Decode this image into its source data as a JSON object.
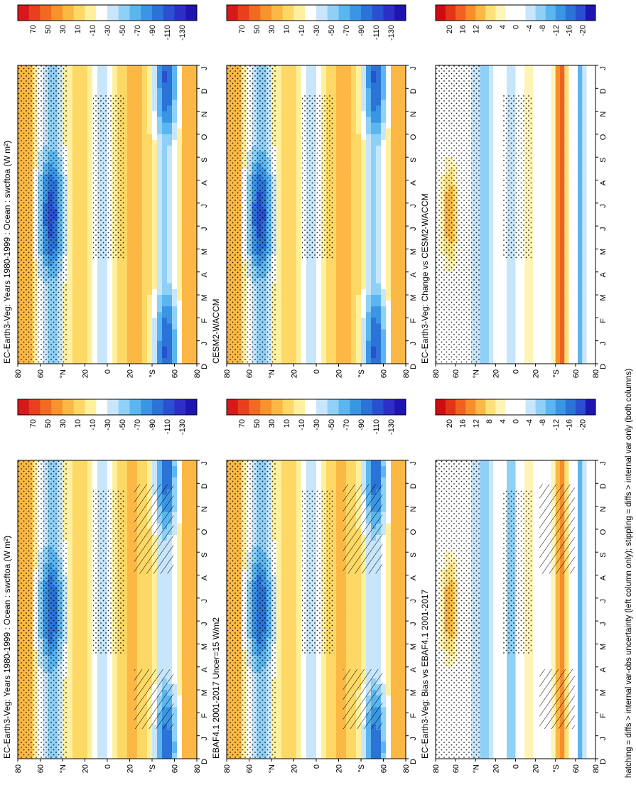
{
  "footer_note": "hatching = diffs > internal var-obs uncertainty (left column only); stippling = diffs > internal var only (both columns)",
  "month_labels": [
    "D",
    "J",
    "F",
    "M",
    "A",
    "M",
    "J",
    "J",
    "A",
    "S",
    "O",
    "N",
    "D",
    "J"
  ],
  "lat_labels": [
    "80",
    "60",
    "°N",
    "20",
    "0",
    "20",
    "°S",
    "60",
    "80"
  ],
  "colorscales": {
    "absolute": {
      "labels": [
        "70",
        "50",
        "30",
        "10",
        "-10",
        "-30",
        "-50",
        "-70",
        "-90",
        "-110",
        "-130"
      ],
      "colors": [
        "#d7191c",
        "#e8401c",
        "#f06a22",
        "#f7922d",
        "#fbb845",
        "#fdd865",
        "#fff09e",
        "#ffffff",
        "#c8e6fb",
        "#8fd0f6",
        "#5bb6ef",
        "#3a96e3",
        "#2b73d6",
        "#2a4fd0",
        "#2d2ec8",
        "#1e14b0"
      ]
    },
    "difference": {
      "labels": [
        "20",
        "16",
        "12",
        "8",
        "4",
        "0",
        "-4",
        "-8",
        "-12",
        "-16",
        "-20"
      ],
      "colors": [
        "#cc0c10",
        "#e23416",
        "#f0601e",
        "#f78e2a",
        "#fbb845",
        "#fde07a",
        "#fff4b8",
        "#ffffff",
        "#ffffff",
        "#c8e6fb",
        "#8fd0f6",
        "#5bb6ef",
        "#3a96e3",
        "#2b73d6",
        "#2a4fd0",
        "#1e14b0"
      ]
    }
  },
  "panels": [
    {
      "id": "p-top-left",
      "title": "EC-Earth3-Veg: Years 1980-1999 : Ocean : swcftoa (W m²)",
      "scale": "absolute",
      "hatching": true,
      "stipple": true
    },
    {
      "id": "p-top-right",
      "title": "EC-Earth3-Veg: Years 1980-1999 : Ocean : swcftoa (W m²)",
      "scale": "absolute",
      "hatching": false,
      "stipple": true
    },
    {
      "id": "p-mid-left",
      "title": "EBAF4.1 2001-2017 Uncer=15 W/m2",
      "scale": "absolute",
      "hatching": true,
      "stipple": true
    },
    {
      "id": "p-mid-right",
      "title": "CESM2-WACCM",
      "scale": "absolute",
      "hatching": false,
      "stipple": true
    },
    {
      "id": "p-bot-left",
      "title": "EC-Earth3-Veg: Bias vs EBAF4.1 2001-2017",
      "scale": "difference",
      "hatching": true,
      "stipple": true
    },
    {
      "id": "p-bot-right",
      "title": "EC-Earth3-Veg: Change vs CESM2-WACCM",
      "scale": "difference",
      "hatching": false,
      "stipple": true
    }
  ],
  "chart_data": [
    {
      "type": "heatmap",
      "title": "EC-Earth3-Veg: Years 1980-1999 : Ocean : swcftoa (W m²)",
      "xlabel": "",
      "ylabel": "",
      "x": [
        "D",
        "J",
        "F",
        "M",
        "A",
        "M",
        "J",
        "J",
        "A",
        "S",
        "O",
        "N",
        "D",
        "J"
      ],
      "y": [
        "80N",
        "60N",
        "40N",
        "20N",
        "0",
        "20S",
        "40S",
        "60S",
        "80S"
      ],
      "zrange": [
        -130,
        70
      ],
      "units": "W m²"
    },
    {
      "type": "heatmap",
      "title": "EC-Earth3-Veg: Years 1980-1999 : Ocean : swcftoa (W m²)",
      "x": [
        "D",
        "J",
        "F",
        "M",
        "A",
        "M",
        "J",
        "J",
        "A",
        "S",
        "O",
        "N",
        "D",
        "J"
      ],
      "y": [
        "80N",
        "60N",
        "40N",
        "20N",
        "0",
        "20S",
        "40S",
        "60S",
        "80S"
      ],
      "zrange": [
        -130,
        70
      ],
      "units": "W m²"
    },
    {
      "type": "heatmap",
      "title": "EBAF4.1 2001-2017 Uncer=15 W/m2",
      "x": [
        "D",
        "J",
        "F",
        "M",
        "A",
        "M",
        "J",
        "J",
        "A",
        "S",
        "O",
        "N",
        "D",
        "J"
      ],
      "y": [
        "80N",
        "60N",
        "40N",
        "20N",
        "0",
        "20S",
        "40S",
        "60S",
        "80S"
      ],
      "zrange": [
        -130,
        70
      ]
    },
    {
      "type": "heatmap",
      "title": "CESM2-WACCM",
      "x": [
        "D",
        "J",
        "F",
        "M",
        "A",
        "M",
        "J",
        "J",
        "A",
        "S",
        "O",
        "N",
        "D",
        "J"
      ],
      "y": [
        "80N",
        "60N",
        "40N",
        "20N",
        "0",
        "20S",
        "40S",
        "60S",
        "80S"
      ],
      "zrange": [
        -130,
        70
      ]
    },
    {
      "type": "heatmap",
      "title": "EC-Earth3-Veg: Bias vs EBAF4.1 2001-2017",
      "x": [
        "D",
        "J",
        "F",
        "M",
        "A",
        "M",
        "J",
        "J",
        "A",
        "S",
        "O",
        "N",
        "D",
        "J"
      ],
      "y": [
        "80N",
        "60N",
        "40N",
        "20N",
        "0",
        "20S",
        "40S",
        "60S",
        "80S"
      ],
      "zrange": [
        -20,
        20
      ]
    },
    {
      "type": "heatmap",
      "title": "EC-Earth3-Veg: Change vs CESM2-WACCM",
      "x": [
        "D",
        "J",
        "F",
        "M",
        "A",
        "M",
        "J",
        "J",
        "A",
        "S",
        "O",
        "N",
        "D",
        "J"
      ],
      "y": [
        "80N",
        "60N",
        "40N",
        "20N",
        "0",
        "20S",
        "40S",
        "60S",
        "80S"
      ],
      "zrange": [
        -20,
        20
      ]
    }
  ]
}
